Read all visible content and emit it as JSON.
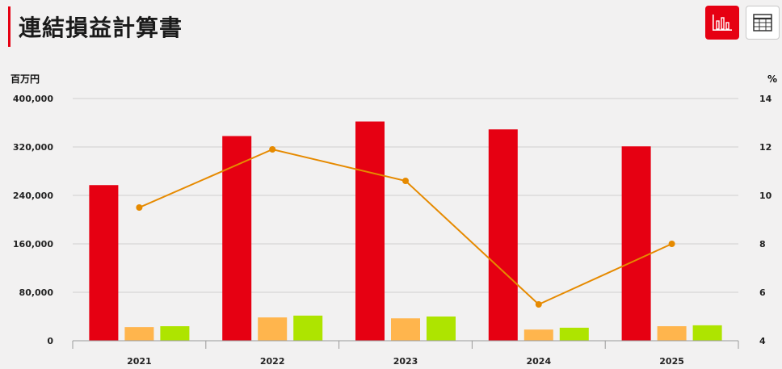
{
  "header": {
    "title": "連結損益計算書",
    "buttons": [
      {
        "icon": "bar-chart-icon",
        "active": true
      },
      {
        "icon": "table-icon",
        "active": false
      }
    ]
  },
  "chart_data": {
    "type": "bar",
    "categories": [
      "2021",
      "2022",
      "2023",
      "2024",
      "2025"
    ],
    "y_left_unit": "百万円",
    "y_right_unit": "%",
    "y_left_range": [
      0,
      400000
    ],
    "y_left_ticks": [
      "0",
      "80,000",
      "160,000",
      "240,000",
      "320,000",
      "400,000"
    ],
    "y_right_range": [
      4,
      14
    ],
    "y_right_ticks": [
      "4",
      "6",
      "8",
      "10",
      "12",
      "14"
    ],
    "grid": true,
    "legend": "none",
    "series": [
      {
        "type": "bar",
        "axis": "left",
        "color": "#e60012",
        "values": [
          257000,
          338000,
          362000,
          349000,
          321000
        ]
      },
      {
        "type": "bar",
        "axis": "left",
        "color": "#ffb54d",
        "values": [
          22500,
          38500,
          37000,
          18500,
          24000
        ]
      },
      {
        "type": "bar",
        "axis": "left",
        "color": "#aee400",
        "values": [
          24000,
          41500,
          40000,
          21500,
          25500
        ]
      },
      {
        "type": "line",
        "axis": "right",
        "color": "#e68a00",
        "values": [
          9.5,
          11.9,
          10.6,
          5.5,
          8.0
        ]
      }
    ]
  }
}
